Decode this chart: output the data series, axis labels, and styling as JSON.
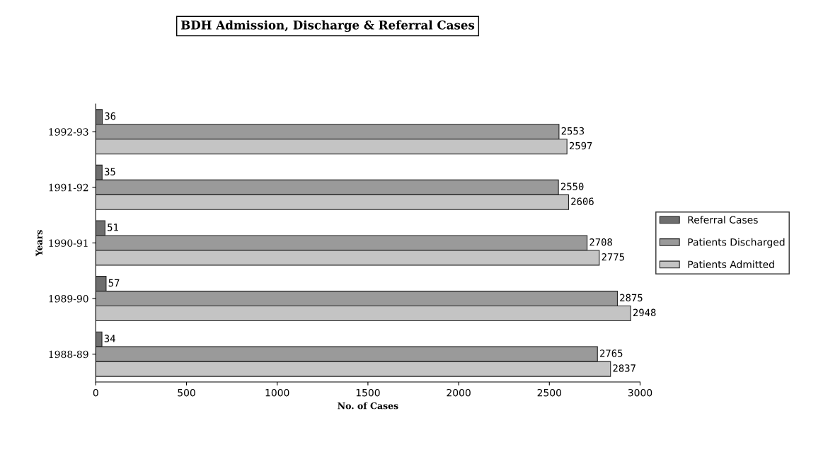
{
  "chart_data": {
    "type": "bar",
    "orientation": "horizontal",
    "title": "BDH Admission, Discharge & Referral Cases",
    "xlabel": "No. of Cases",
    "ylabel": "Years",
    "categories": [
      "1992-93",
      "1991-92",
      "1990-91",
      "1989-90",
      "1988-89"
    ],
    "series": [
      {
        "name": "Referral Cases",
        "color": "#6e6e6e",
        "values": [
          36,
          35,
          51,
          57,
          34
        ]
      },
      {
        "name": "Patients Discharged",
        "color": "#9a9a9a",
        "values": [
          2553,
          2550,
          2708,
          2875,
          2765
        ]
      },
      {
        "name": "Patients Admitted",
        "color": "#c4c4c4",
        "values": [
          2597,
          2606,
          2775,
          2948,
          2837
        ]
      }
    ],
    "xlim": [
      0,
      3000
    ],
    "xticks": [
      0,
      500,
      1000,
      1500,
      2000,
      2500,
      3000
    ],
    "data_labels": true,
    "grid": false,
    "legend": "right"
  }
}
